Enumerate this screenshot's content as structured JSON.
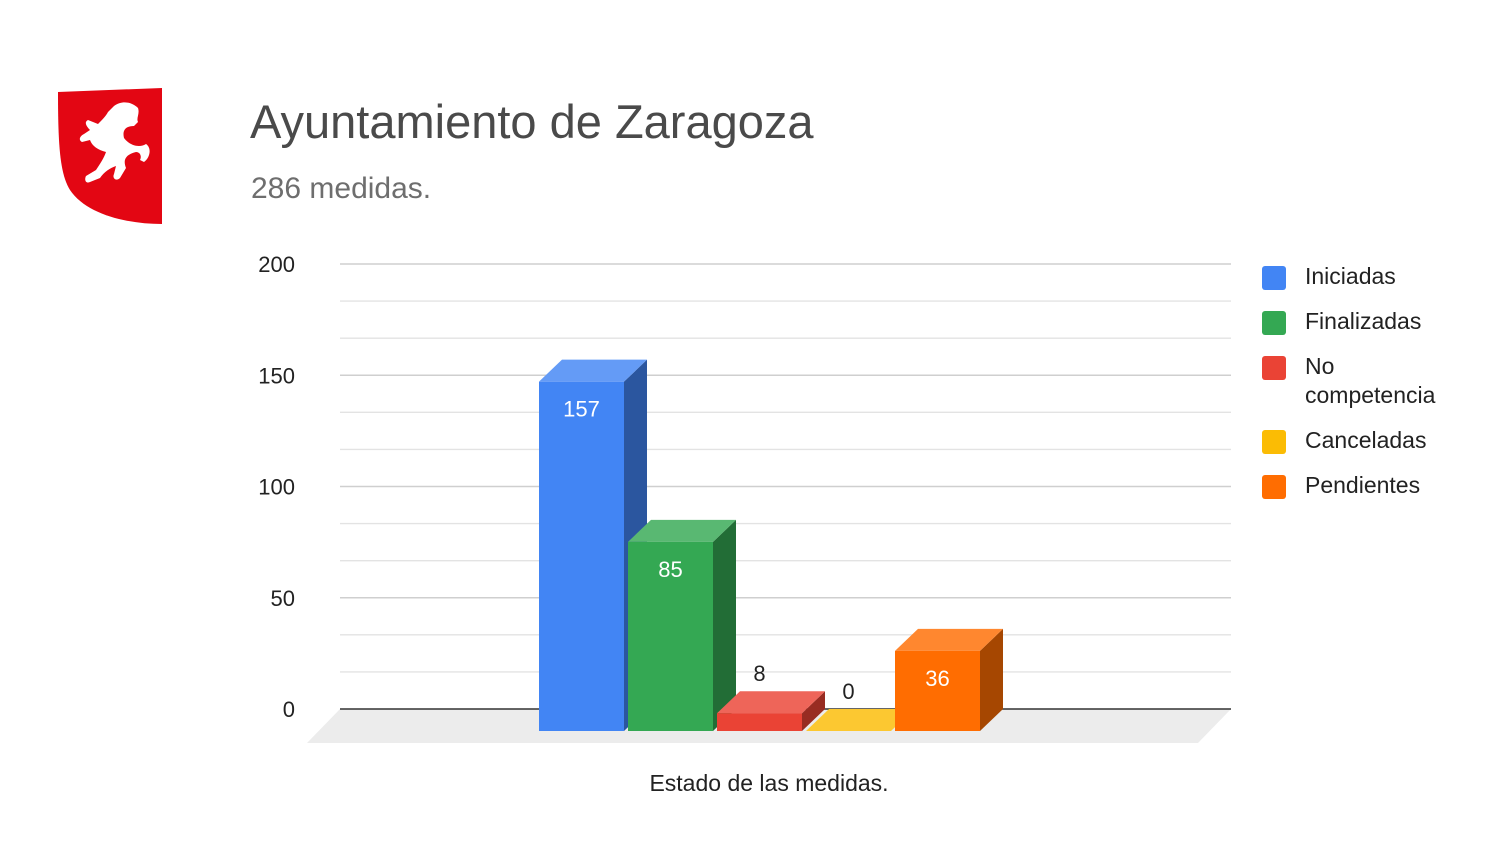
{
  "header": {
    "title": "Ayuntamiento de Zaragoza",
    "subtitle": "286 medidas."
  },
  "logo": {
    "name": "zaragoza-lion-shield",
    "color": "#e30613"
  },
  "chart_data": {
    "type": "bar",
    "style": "3d",
    "categories": [
      "Iniciadas",
      "Finalizadas",
      "No competencia",
      "Canceladas",
      "Pendientes"
    ],
    "values": [
      157,
      85,
      8,
      0,
      36
    ],
    "data_labels": [
      "157",
      "85",
      "8",
      "0",
      "36"
    ],
    "colors": [
      "#4285f4",
      "#34a853",
      "#ea4335",
      "#fbbc04",
      "#ff6d01"
    ],
    "y_ticks": [
      "0",
      "50",
      "100",
      "150",
      "200"
    ],
    "ylim": [
      0,
      200
    ],
    "xlabel": "Estado de las medidas.",
    "legend": "right",
    "grid": true
  }
}
